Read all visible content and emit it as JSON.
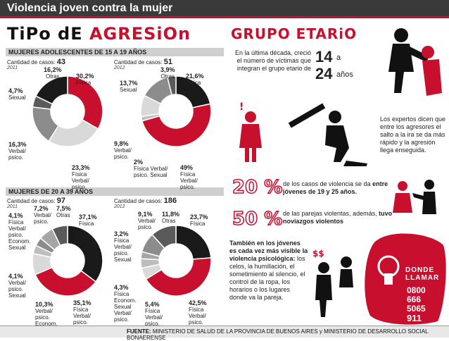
{
  "header": {
    "title": "Violencia joven contra la mujer"
  },
  "section_titles": {
    "agresion_a": "TiPo dE ",
    "agresion_b": "AGRESiOn",
    "grupo": "GRUPO ETARiO"
  },
  "bands": {
    "adolescentes": "MUJERES ADOLESCENTES DE 15 A 19 AÑOS",
    "adultas": "MUJERES DE 20 A 39 AÑOS"
  },
  "chart_data": [
    {
      "type": "pie",
      "group": "adolescentes",
      "cases_label": "Cantidad de casos:",
      "cases": "43",
      "year": "2011",
      "slices": [
        {
          "name": "Física",
          "value": 30.2,
          "label": "30,2%",
          "color": "#c8102e"
        },
        {
          "name": "Verbal/ psico.",
          "value": 23.3,
          "label": "23,3%",
          "color": "#d9d9d9"
        },
        {
          "name": "Verbal/ psico.",
          "value": 16.3,
          "label": "16,3%",
          "color": "#8c8c8c"
        },
        {
          "name": "Sexual",
          "value": 4.7,
          "label": "4,7%",
          "color": "#5a5a5a"
        },
        {
          "name": "Otras",
          "value": 16.2,
          "label": "16,2%",
          "color": "#1a1a1a"
        }
      ]
    },
    {
      "type": "pie",
      "group": "adolescentes",
      "cases_label": "Cantidad de casos:",
      "cases": "51",
      "year": "2012",
      "slices": [
        {
          "name": "Física",
          "value": 21.6,
          "label": "21,6%",
          "color": "#1a1a1a"
        },
        {
          "name": "Física Verbal/ psico.",
          "value": 49,
          "label": "49%",
          "color": "#c8102e"
        },
        {
          "name": "Física Verbal/ psico. Sexual",
          "value": 2,
          "label": "2%",
          "color": "#bdbdbd"
        },
        {
          "name": "Verbal/ psico.",
          "value": 9.8,
          "label": "9,8%",
          "color": "#d9d9d9"
        },
        {
          "name": "Sexual",
          "value": 13.7,
          "label": "13,7%",
          "color": "#8c8c8c"
        },
        {
          "name": "Otras",
          "value": 3.9,
          "label": "3,9%",
          "color": "#5a5a5a"
        }
      ]
    },
    {
      "type": "pie",
      "group": "adultas",
      "cases_label": "Cantidad de casos:",
      "cases": "97",
      "year": "2011",
      "slices": [
        {
          "name": "Física",
          "value": 37.1,
          "label": "37,1%",
          "color": "#1a1a1a"
        },
        {
          "name": "Física Verbal/ psico.",
          "value": 35.1,
          "label": "35,1%",
          "color": "#c8102e"
        },
        {
          "name": "Verbal/ psico. Econom.",
          "value": 10.3,
          "label": "10,3%",
          "color": "#d9d9d9"
        },
        {
          "name": "Física Verbal/ psico. Econom. Sexual",
          "value": 4.1,
          "label": "4,1%",
          "color": "#bdbdbd"
        },
        {
          "name": "Verbal/ psico. Sexual",
          "value": 4.1,
          "label": "4,1%",
          "color": "#8c8c8c"
        },
        {
          "name": "Verbal/ psico.",
          "value": 7.2,
          "label": "7,2%",
          "color": "#a6a6a6"
        },
        {
          "name": "Otras",
          "value": 7.5,
          "label": "7,5%",
          "color": "#5a5a5a"
        }
      ]
    },
    {
      "type": "pie",
      "group": "adultas",
      "cases_label": "Cantidad de casos:",
      "cases": "186",
      "year": "2012",
      "slices": [
        {
          "name": "Física",
          "value": 23.7,
          "label": "23,7%",
          "color": "#1a1a1a"
        },
        {
          "name": "Física Verbal/ psico.",
          "value": 42.5,
          "label": "42,5%",
          "color": "#c8102e"
        },
        {
          "name": "Física Verbal/ psico. Econom.",
          "value": 5.4,
          "label": "5,4%",
          "color": "#d9d9d9"
        },
        {
          "name": "Física Econom. Sexual Verbal/ psico.",
          "value": 4.3,
          "label": "4,3%",
          "color": "#bdbdbd"
        },
        {
          "name": "Física Verbal/ psico. Sexual",
          "value": 3.2,
          "label": "3,2%",
          "color": "#a6a6a6"
        },
        {
          "name": "Verbal/ psico.",
          "value": 9.1,
          "label": "9,1%",
          "color": "#8c8c8c"
        },
        {
          "name": "Otras",
          "value": 11.8,
          "label": "11,8%",
          "color": "#5a5a5a"
        }
      ]
    }
  ],
  "labels": {
    "c1": {
      "fisica": "Física",
      "otras": "Otras",
      "sexual": "Sexual",
      "verbal": "Verbal/ psico.",
      "fv": "Física Verbal/ psico."
    },
    "c2": {
      "fisica": "Física",
      "otras": "Otras",
      "sexual": "Sexual",
      "verbal": "Verbal/ psico.",
      "fvs": "Física Verbal/ psico. Sexual",
      "fv": "Física Verbal/ psico."
    },
    "c3": {
      "fisica": "Física",
      "otras": "Otras",
      "verbal": "Verbal/ psico.",
      "fve": "Física Verbal/ psico. Econom. Sexual",
      "vs": "Verbal/ psico. Sexual",
      "vpe": "Verbal/ psico. Econom.",
      "fv": "Física Verbal/ psico."
    },
    "c4": {
      "fisica": "Física",
      "otras": "Otras",
      "verbal": "Verbal/ psico.",
      "fvs": "Física Verbal/ psico. Sexual",
      "fes": "Física Econom. Sexual Verbal/ psico.",
      "fve": "Física Verbal/ psico. Econom.",
      "fv": "Física Verbal/ psico."
    }
  },
  "grupo": {
    "text": "En la última década, creció el número de víctimas que integran el grupo etario de",
    "from": "14",
    "a": "a",
    "to": "24",
    "anos": "años",
    "expertos": "Los expertos dicen que entre los agresores el salto a la ira se da más rápido y la agresión llega enseguida."
  },
  "stats": [
    {
      "value": "20 %",
      "text_a": "de los casos de violencia se da ",
      "text_b": "entre jóvenes de 19 y 25 años."
    },
    {
      "value": "50 %",
      "text_a": "de las parejas violentas, además, ",
      "text_b": "tuvo noviazgos violentos"
    }
  ],
  "psico": {
    "bold": "También en los jóvenes es cada vez más visible la violencia psicológica:",
    "rest": "los celos, la humillación, el sometimiento al silencio, el control de la ropa, los horarios o los lugares donde va la pareja."
  },
  "llamar": {
    "label_a": "DONDE",
    "label_b": "LLAMAR",
    "tel_a": "0800",
    "tel_b": "666",
    "tel_c": "5065",
    "short": "911"
  },
  "footer": {
    "prefix": "FUENTE:",
    "text": "MINISTERIO DE SALUD DE LA PROVINCIA DE BUENOS AIRES y MINISTERIO DE DESARROLLO SOCIAL BONAERENSE"
  },
  "colors": {
    "accent": "#c8102e",
    "dark": "#1a1a1a"
  }
}
